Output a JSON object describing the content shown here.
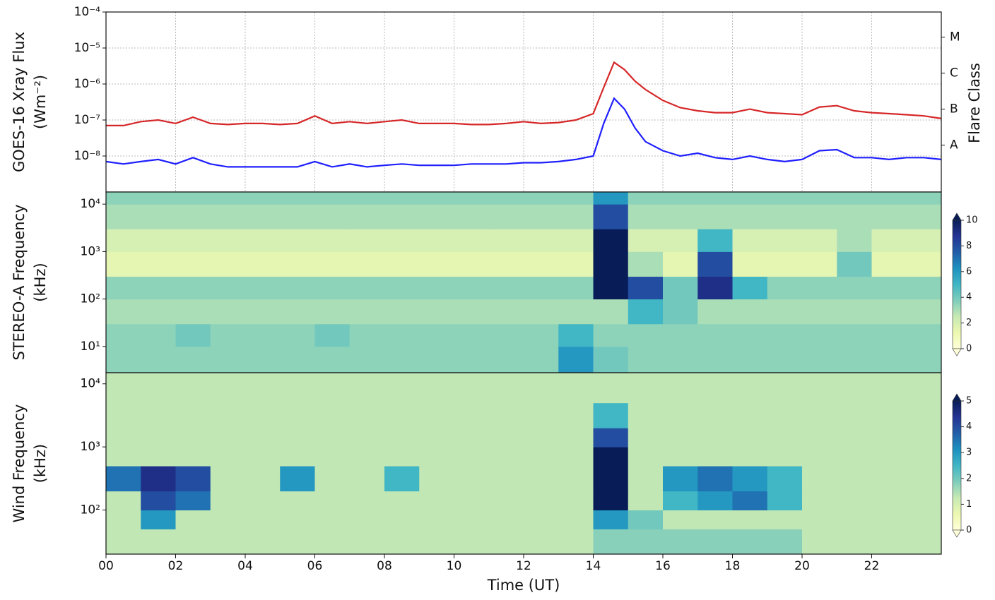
{
  "chart_data": [
    {
      "type": "line",
      "log_y": true,
      "grid": true,
      "ylabel": [
        "GOES-16 Xray Flux",
        "(Wm⁻²)"
      ],
      "xlim": [
        0,
        24
      ],
      "xticks": [
        0,
        2,
        4,
        6,
        8,
        10,
        12,
        14,
        16,
        18,
        20,
        22
      ],
      "ylim": [
        1e-09,
        0.0001
      ],
      "yticks": [
        {
          "value": 1e-08,
          "label": "10⁻⁸"
        },
        {
          "value": 1e-07,
          "label": "10⁻⁷"
        },
        {
          "value": 1e-06,
          "label": "10⁻⁶"
        },
        {
          "value": 1e-05,
          "label": "10⁻⁵"
        },
        {
          "value": 0.0001,
          "label": "10⁻⁴"
        }
      ],
      "y2label": "Flare Class",
      "y2lim": [
        1e-09,
        0.0001
      ],
      "y2ticks": [
        {
          "value": 2e-08,
          "label": "A"
        },
        {
          "value": 2e-07,
          "label": "B"
        },
        {
          "value": 2e-06,
          "label": "C"
        },
        {
          "value": 2e-05,
          "label": "M"
        }
      ],
      "x": [
        0,
        0.5,
        1,
        1.5,
        2,
        2.5,
        3,
        3.5,
        4,
        4.5,
        5,
        5.5,
        6,
        6.5,
        7,
        7.5,
        8,
        8.5,
        9,
        9.5,
        10,
        10.5,
        11,
        11.5,
        12,
        12.5,
        13,
        13.5,
        14,
        14.3,
        14.6,
        14.9,
        15.2,
        15.5,
        16,
        16.5,
        17,
        17.5,
        18,
        18.5,
        19,
        19.5,
        20,
        20.5,
        21,
        21.5,
        22,
        22.5,
        23,
        23.5,
        24
      ],
      "series": [
        {
          "color": "#d62728",
          "values": [
            7e-08,
            7e-08,
            9e-08,
            1e-07,
            8e-08,
            1.2e-07,
            8e-08,
            7.5e-08,
            8e-08,
            8e-08,
            7.5e-08,
            8e-08,
            1.3e-07,
            8e-08,
            9e-08,
            8e-08,
            9e-08,
            1e-07,
            8e-08,
            8e-08,
            8e-08,
            7.5e-08,
            7.5e-08,
            8e-08,
            9e-08,
            8e-08,
            8.5e-08,
            1e-07,
            1.5e-07,
            8e-07,
            4e-06,
            2.5e-06,
            1.2e-06,
            7e-07,
            3.5e-07,
            2.2e-07,
            1.8e-07,
            1.6e-07,
            1.6e-07,
            2e-07,
            1.6e-07,
            1.5e-07,
            1.4e-07,
            2.3e-07,
            2.5e-07,
            1.8e-07,
            1.6e-07,
            1.5e-07,
            1.4e-07,
            1.3e-07,
            1.1e-07
          ]
        },
        {
          "color": "#1f1fff",
          "values": [
            7e-09,
            6e-09,
            7e-09,
            8e-09,
            6e-09,
            9e-09,
            6e-09,
            5e-09,
            5e-09,
            5e-09,
            5e-09,
            5e-09,
            7e-09,
            5e-09,
            6e-09,
            5e-09,
            5.5e-09,
            6e-09,
            5.5e-09,
            5.5e-09,
            5.5e-09,
            6e-09,
            6e-09,
            6e-09,
            6.5e-09,
            6.5e-09,
            7e-09,
            8e-09,
            1e-08,
            8e-08,
            4e-07,
            2e-07,
            6e-08,
            2.5e-08,
            1.4e-08,
            1e-08,
            1.2e-08,
            9e-09,
            8e-09,
            1e-08,
            8e-09,
            7e-09,
            8e-09,
            1.4e-08,
            1.5e-08,
            9e-09,
            9e-09,
            8e-09,
            9e-09,
            9e-09,
            8e-09
          ]
        }
      ]
    },
    {
      "type": "heatmap",
      "log_y": true,
      "colormap": "YlGnBu",
      "extend": "both",
      "ylabel": [
        "STEREO-A Frequency",
        "(kHz)"
      ],
      "xlim": [
        0,
        24
      ],
      "ylim": [
        2.8,
        18000
      ],
      "yticks": [
        {
          "value": 10,
          "label": "10¹"
        },
        {
          "value": 100,
          "label": "10²"
        },
        {
          "value": 1000,
          "label": "10³"
        },
        {
          "value": 10000,
          "label": "10⁴"
        }
      ],
      "zlim": [
        0,
        10
      ],
      "zticks": [
        0,
        2,
        4,
        6,
        8,
        10
      ],
      "xbins": [
        0,
        1,
        2,
        3,
        4,
        5,
        6,
        7,
        8,
        9,
        10,
        11,
        12,
        13,
        14,
        15,
        16,
        17,
        18,
        19,
        20,
        21,
        22,
        23,
        24
      ],
      "ybins": [
        2.8,
        10,
        30,
        100,
        300,
        1000,
        3000,
        10000,
        18000
      ],
      "z": [
        [
          3.5,
          3.5,
          3.5,
          3.5,
          3.5,
          3.5,
          3.5,
          3.5,
          3.5,
          3.5,
          3.5,
          3.5,
          3.5,
          6,
          4,
          3.5,
          3.5,
          3.5,
          3.5,
          3.5,
          3.5,
          3.5,
          3.5,
          3.5
        ],
        [
          3.5,
          3.5,
          4,
          3.5,
          3.5,
          3.5,
          4,
          3.5,
          3.5,
          3.5,
          3.5,
          3.5,
          3.5,
          5,
          3.5,
          3.5,
          3.5,
          3.5,
          3.5,
          3.5,
          3.5,
          3.5,
          3.5,
          3.5
        ],
        [
          3,
          3,
          3,
          3,
          3,
          3,
          3,
          3,
          3,
          3,
          3,
          3,
          3,
          3,
          3,
          5,
          4,
          3,
          3,
          3,
          3,
          3,
          3,
          3
        ],
        [
          3.5,
          3.5,
          3.5,
          3.5,
          3.5,
          3.5,
          3.5,
          3.5,
          3.5,
          3.5,
          3.5,
          3.5,
          3.5,
          3.5,
          10,
          8,
          4,
          9,
          5,
          3.5,
          3.5,
          3.5,
          3.5,
          3.5
        ],
        [
          1.5,
          1.5,
          1.5,
          1.5,
          1.5,
          1.5,
          1.5,
          1.5,
          1.5,
          1.5,
          1.5,
          1.5,
          1.5,
          1.5,
          10,
          3,
          1.5,
          8,
          1.5,
          1.5,
          1.5,
          4,
          1.5,
          1.5
        ],
        [
          2,
          2,
          2,
          2,
          2,
          2,
          2,
          2,
          2,
          2,
          2,
          2,
          2,
          2,
          10,
          2,
          2,
          5,
          2,
          2,
          2,
          3,
          2,
          2
        ],
        [
          3,
          3,
          3,
          3,
          3,
          3,
          3,
          3,
          3,
          3,
          3,
          3,
          3,
          3,
          8,
          3,
          3,
          3,
          3,
          3,
          3,
          3,
          3,
          3
        ],
        [
          3.5,
          3.5,
          3.5,
          3.5,
          3.5,
          3.5,
          3.5,
          3.5,
          3.5,
          3.5,
          3.5,
          3.5,
          3.5,
          3.5,
          6,
          3.5,
          3.5,
          3.5,
          3.5,
          3.5,
          3.5,
          3.5,
          3.5,
          3.5
        ]
      ]
    },
    {
      "type": "heatmap",
      "log_y": true,
      "colormap": "YlGnBu",
      "extend": "both",
      "ylabel": [
        "Wind Frequency",
        "(kHz)"
      ],
      "xlabel": "Time (UT)",
      "xlim": [
        0,
        24
      ],
      "xticks": [
        {
          "value": 0,
          "label": "00"
        },
        {
          "value": 2,
          "label": "02"
        },
        {
          "value": 4,
          "label": "04"
        },
        {
          "value": 6,
          "label": "06"
        },
        {
          "value": 8,
          "label": "08"
        },
        10,
        12,
        14,
        16,
        18,
        20,
        22
      ],
      "ylim": [
        20,
        15000
      ],
      "yticks": [
        {
          "value": 100,
          "label": "10²"
        },
        {
          "value": 1000,
          "label": "10³"
        },
        {
          "value": 10000,
          "label": "10⁴"
        }
      ],
      "zlim": [
        0,
        5
      ],
      "zticks": [
        0,
        1,
        2,
        3,
        4,
        5
      ],
      "xbins": [
        0,
        1,
        2,
        3,
        4,
        5,
        6,
        7,
        8,
        9,
        10,
        11,
        12,
        13,
        14,
        15,
        16,
        17,
        18,
        19,
        20,
        21,
        22,
        23,
        24
      ],
      "ybins": [
        20,
        50,
        100,
        200,
        500,
        1000,
        2000,
        5000,
        15000
      ],
      "z": [
        [
          1.3,
          1.3,
          1.3,
          1.3,
          1.3,
          1.3,
          1.3,
          1.3,
          1.3,
          1.3,
          1.3,
          1.3,
          1.3,
          1.3,
          1.8,
          1.8,
          1.8,
          1.8,
          1.8,
          1.8,
          1.3,
          1.3,
          1.3,
          1.3
        ],
        [
          1.3,
          3,
          1.3,
          1.3,
          1.3,
          1.3,
          1.3,
          1.3,
          1.3,
          1.3,
          1.3,
          1.3,
          1.3,
          1.3,
          3,
          2,
          1.3,
          1.3,
          1.3,
          1.3,
          1.3,
          1.3,
          1.3,
          1.3
        ],
        [
          1.3,
          4,
          3.5,
          1.3,
          1.3,
          1.3,
          1.3,
          1.3,
          1.3,
          1.3,
          1.3,
          1.3,
          1.3,
          1.3,
          5,
          1.3,
          2.5,
          3,
          3.5,
          2.5,
          1.3,
          1.3,
          1.3,
          1.3
        ],
        [
          3.5,
          4.5,
          4,
          1.3,
          1.3,
          3,
          1.3,
          1.3,
          2.5,
          1.3,
          1.3,
          1.3,
          1.3,
          1.3,
          5,
          1.3,
          3,
          3.5,
          3,
          2.5,
          1.3,
          1.3,
          1.3,
          1.3
        ],
        [
          1.3,
          1.3,
          1.3,
          1.3,
          1.3,
          1.3,
          1.3,
          1.3,
          1.3,
          1.3,
          1.3,
          1.3,
          1.3,
          1.3,
          5,
          1.3,
          1.3,
          1.3,
          1.3,
          1.3,
          1.3,
          1.3,
          1.3,
          1.3
        ],
        [
          1.3,
          1.3,
          1.3,
          1.3,
          1.3,
          1.3,
          1.3,
          1.3,
          1.3,
          1.3,
          1.3,
          1.3,
          1.3,
          1.3,
          4,
          1.3,
          1.3,
          1.3,
          1.3,
          1.3,
          1.3,
          1.3,
          1.3,
          1.3
        ],
        [
          1.3,
          1.3,
          1.3,
          1.3,
          1.3,
          1.3,
          1.3,
          1.3,
          1.3,
          1.3,
          1.3,
          1.3,
          1.3,
          1.3,
          2.5,
          1.3,
          1.3,
          1.3,
          1.3,
          1.3,
          1.3,
          1.3,
          1.3,
          1.3
        ],
        [
          1.3,
          1.3,
          1.3,
          1.3,
          1.3,
          1.3,
          1.3,
          1.3,
          1.3,
          1.3,
          1.3,
          1.3,
          1.3,
          1.3,
          1.3,
          1.3,
          1.3,
          1.3,
          1.3,
          1.3,
          1.3,
          1.3,
          1.3,
          1.3
        ]
      ]
    }
  ]
}
